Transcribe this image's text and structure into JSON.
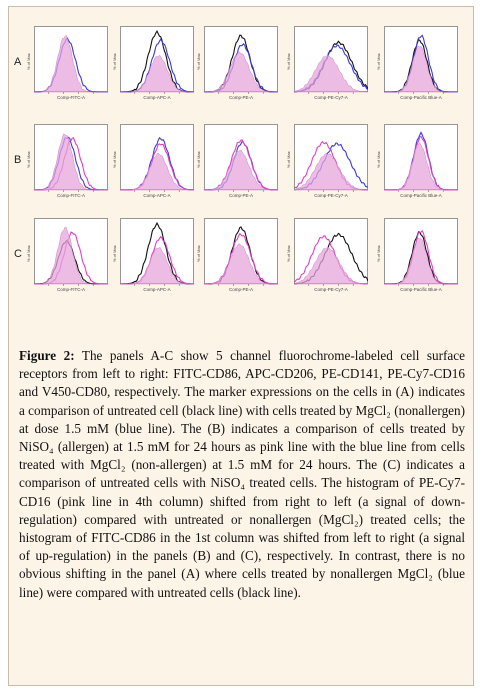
{
  "figure": {
    "rows": [
      {
        "label": "A",
        "panels": [
          {
            "ylabel": "% of Max",
            "xlabel": "Comp-FITC-A",
            "curves": [
              "blue",
              "fill"
            ]
          },
          {
            "ylabel": "% of Max",
            "xlabel": "Comp-APC-A",
            "curves": [
              "black",
              "blue",
              "fill"
            ]
          },
          {
            "ylabel": "% of Max",
            "xlabel": "Comp-PE-A",
            "curves": [
              "black",
              "blue",
              "fill"
            ]
          },
          {
            "ylabel": "% of Max",
            "xlabel": "Comp-PE-Cy7-A",
            "curves": [
              "black",
              "blue",
              "fill"
            ]
          },
          {
            "ylabel": "% of Max",
            "xlabel": "Comp-Pacific Blue-A",
            "curves": [
              "black",
              "blue",
              "fill"
            ]
          }
        ]
      },
      {
        "label": "B",
        "panels": [
          {
            "ylabel": "% of Max",
            "xlabel": "Comp-FITC-A",
            "curves": [
              "blue",
              "pink",
              "fill"
            ]
          },
          {
            "ylabel": "% of Max",
            "xlabel": "Comp-APC-A",
            "curves": [
              "blue",
              "pink",
              "fill"
            ]
          },
          {
            "ylabel": "% of Max",
            "xlabel": "Comp-PE-A",
            "curves": [
              "blue",
              "pink",
              "fill"
            ]
          },
          {
            "ylabel": "% of Max",
            "xlabel": "Comp-PE-Cy7-A",
            "curves": [
              "blue",
              "pink",
              "fill"
            ]
          },
          {
            "ylabel": "% of Max",
            "xlabel": "Comp-Pacific Blue-A",
            "curves": [
              "blue",
              "pink",
              "fill"
            ]
          }
        ]
      },
      {
        "label": "C",
        "panels": [
          {
            "ylabel": "% of Max",
            "xlabel": "Comp-FITC-A",
            "curves": [
              "black",
              "pink",
              "fill"
            ]
          },
          {
            "ylabel": "% of Max",
            "xlabel": "Comp-APC-A",
            "curves": [
              "black",
              "pink",
              "fill"
            ]
          },
          {
            "ylabel": "% of Max",
            "xlabel": "Comp-PE-A",
            "curves": [
              "black",
              "pink",
              "fill"
            ]
          },
          {
            "ylabel": "% of Max",
            "xlabel": "Comp-PE-Cy7-A",
            "curves": [
              "black",
              "pink",
              "fill"
            ]
          },
          {
            "ylabel": "% of Max",
            "xlabel": "Comp-Pacific Blue-A",
            "curves": [
              "black",
              "pink",
              "fill"
            ]
          }
        ]
      }
    ],
    "colors": {
      "black": "#111111",
      "blue": "#3a3ad8",
      "pink": "#e040c8",
      "fill": "#e6a6dc"
    }
  },
  "caption": {
    "label": "Figure 2:",
    "text": "The panels A-C show 5 channel fluorochrome-labeled cell surface receptors from left to right: FITC-CD86, APC-CD206, PE-CD141, PE-Cy7-CD16 and V450-CD80, respectively. The marker expressions on the cells in (A) indicates a comparison of untreated cell (black line) with cells treated by MgCl₂ (nonallergen) at dose 1.5 mM (blue line). The (B) indicates a comparison of cells treated by NiSO₄ (allergen) at 1.5 mM for 24 hours as pink line with the blue line from cells treated with MgCl₂ (non-allergen) at 1.5 mM for 24 hours. The (C) indicates a comparison of untreated cells with NiSO₄ treated cells. The histogram of PE-Cy7-CD16 (pink line in 4th column) shifted from right to left (a signal of down-regulation) compared with untreated or nonallergen (MgCl₂) treated cells; the histogram of FITC-CD86 in the 1st column was shifted from left to right (a signal of up-regulation) in the panels (B) and (C), respectively. In contrast, there is no obvious shifting in the panel (A) where cells treated by nonallergen MgCl₂ (blue line) were compared with untreated cells (black line)."
  }
}
